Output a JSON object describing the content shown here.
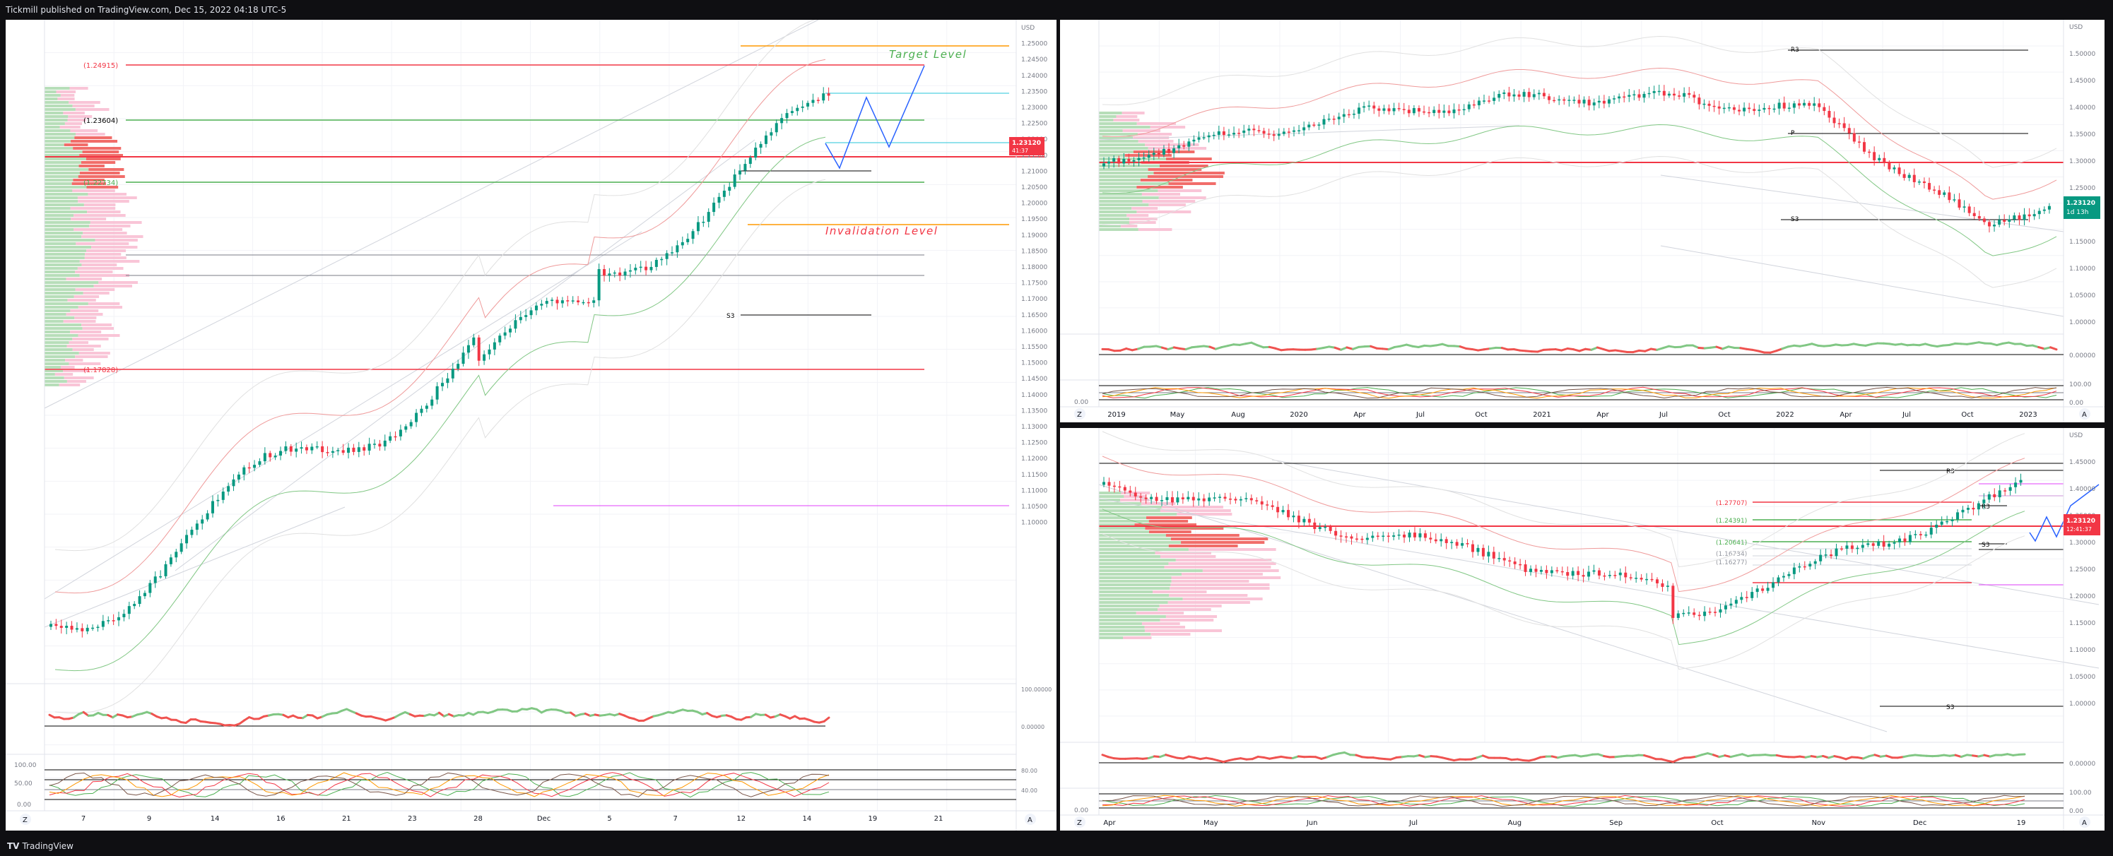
{
  "header": {
    "publisher_text": "Tickmill published on TradingView.com, Dec 15, 2022 04:18 UTC-5"
  },
  "footer": {
    "brand": "TradingView",
    "brand_mark": "TV"
  },
  "colors": {
    "up": "#089981",
    "down": "#f23645",
    "bg": "#ffffff",
    "grid": "#f0f3fa",
    "text": "#131722",
    "green_line": "#4caf50",
    "red_line": "#f23645"
  },
  "left_chart": {
    "price_axis": [
      "USD",
      "1.25000",
      "1.24500",
      "1.24000",
      "1.23500",
      "1.23000",
      "1.22500",
      "1.22000",
      "1.21500",
      "1.21000",
      "1.20500",
      "1.20000",
      "1.19500",
      "1.19000",
      "1.18500",
      "1.18000",
      "1.17500",
      "1.17000",
      "1.16500",
      "1.16000",
      "1.15500",
      "1.15000",
      "1.14500",
      "1.14000",
      "1.13500",
      "1.13000",
      "1.12500",
      "1.12000",
      "1.11500",
      "1.11000",
      "1.10500",
      "1.10000"
    ],
    "time_axis": [
      "7",
      "9",
      "14",
      "16",
      "21",
      "23",
      "28",
      "Dec",
      "5",
      "7",
      "12",
      "14",
      "19",
      "21"
    ],
    "level_labels": {
      "l1": "(1.24915)",
      "l2": "(1.23604)",
      "l3": "(1.22734)",
      "l4": "(1.17828)",
      "s3": "S3",
      "r2": "R2"
    },
    "annotations": {
      "target": "Target Level",
      "invalidation": "Invalidation Level"
    },
    "last_price": "1.23120",
    "countdown": "41:37",
    "osc1_axis": [
      "100.00000",
      "0.00000"
    ],
    "osc2_axis": [
      "80.00",
      "40.00"
    ],
    "osc2_left_labels": [
      "100.00",
      "50.00",
      "0.00"
    ],
    "z_label": "Z",
    "a_label": "A"
  },
  "top_right_chart": {
    "price_axis": [
      "USD",
      "1.50000",
      "1.45000",
      "1.40000",
      "1.35000",
      "1.30000",
      "1.25000",
      "1.20000",
      "1.15000",
      "1.10000",
      "1.05000",
      "1.00000"
    ],
    "time_axis": [
      "2019",
      "May",
      "Aug",
      "2020",
      "Apr",
      "Jul",
      "Oct",
      "2021",
      "Apr",
      "Jul",
      "Oct",
      "2022",
      "Apr",
      "Jul",
      "Oct",
      "2023"
    ],
    "level_labels": {
      "r3": "R3",
      "s3": "S3",
      "p": "P"
    },
    "last_price": "1.23120",
    "countdown": "1d 13h",
    "osc1_axis": [
      "0.00000"
    ],
    "osc2_axis": [
      "100.00",
      "0.00"
    ],
    "osc2_left_label": "0.00",
    "z_label": "Z",
    "a_label": "A"
  },
  "bottom_right_chart": {
    "price_axis": [
      "USD",
      "1.45000",
      "1.40000",
      "1.35000",
      "1.30000",
      "1.25000",
      "1.20000",
      "1.15000",
      "1.10000",
      "1.05000",
      "1.00000"
    ],
    "time_axis": [
      "Apr",
      "May",
      "Jun",
      "Jul",
      "Aug",
      "Sep",
      "Oct",
      "Nov",
      "Dec",
      "19"
    ],
    "level_labels": {
      "l1": "(1.27707)",
      "l2": "(1.24391)",
      "l3": "(1.20641)",
      "l4": "(1.16734)",
      "l5": "(1.16277)",
      "r3a": "R3",
      "r3b": "R3",
      "s3a": "S3",
      "s3b": "S3"
    },
    "last_price": "1.23120",
    "countdown": "12:41:37",
    "osc1_axis": [
      "0.00000"
    ],
    "osc2_axis": [
      "100.00",
      "0.00"
    ],
    "osc2_left_label": "0.00",
    "z_label": "Z",
    "a_label": "A"
  }
}
